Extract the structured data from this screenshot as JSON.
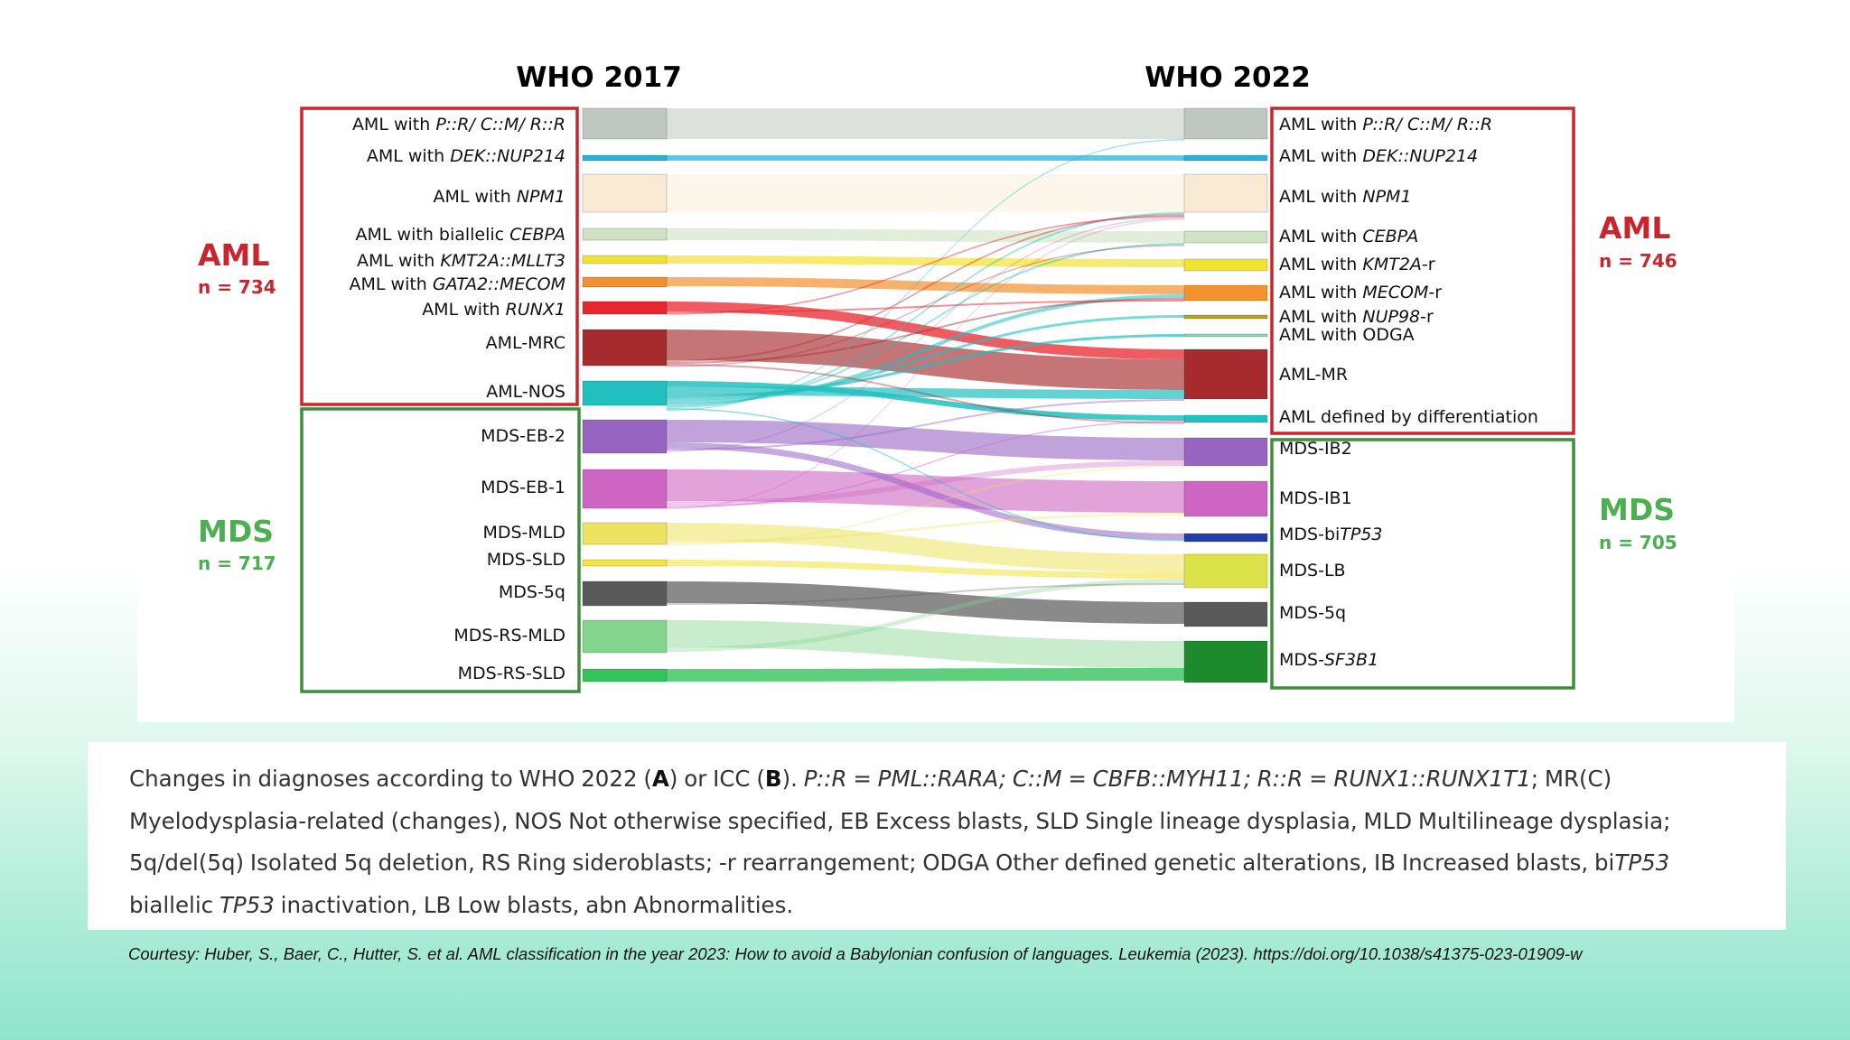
{
  "headers": {
    "left": "WHO 2017",
    "right": "WHO 2022"
  },
  "groups": {
    "aml_left": {
      "name": "AML",
      "count": "n = 734"
    },
    "mds_left": {
      "name": "MDS",
      "count": "n = 717"
    },
    "aml_right": {
      "name": "AML",
      "count": "n = 746"
    },
    "mds_right": {
      "name": "MDS",
      "count": "n = 705"
    }
  },
  "colors": {
    "aml_group": "#c8262e",
    "mds_group": "#3f8e3a"
  },
  "left_nodes": [
    {
      "label": "AML with ",
      "italic": "P::R/ C::M/ R::R",
      "suffix": "",
      "color": "#bfc8c0"
    },
    {
      "label": "AML with ",
      "italic": "DEK::NUP214",
      "suffix": "",
      "color": "#29b2d6"
    },
    {
      "label": "AML with ",
      "italic": "NPM1",
      "suffix": "",
      "color": "#f8ead3"
    },
    {
      "label": "AML with biallelic ",
      "italic": "CEBPA",
      "suffix": "",
      "color": "#cfe3c2"
    },
    {
      "label": "AML with ",
      "italic": "KMT2A::MLLT3",
      "suffix": "",
      "color": "#f2e330"
    },
    {
      "label": "AML with ",
      "italic": "GATA2::MECOM",
      "suffix": "",
      "color": "#f2922f"
    },
    {
      "label": "AML with ",
      "italic": "RUNX1",
      "suffix": "",
      "color": "#e8262e"
    },
    {
      "label": "AML-MRC",
      "italic": "",
      "suffix": "",
      "color": "#a72b2e"
    },
    {
      "label": "AML-NOS",
      "italic": "",
      "suffix": "",
      "color": "#21bfbf"
    },
    {
      "label": "MDS-EB-2",
      "italic": "",
      "suffix": "",
      "color": "#9764c2"
    },
    {
      "label": "MDS-EB-1",
      "italic": "",
      "suffix": "",
      "color": "#cf65c3"
    },
    {
      "label": "MDS-MLD",
      "italic": "",
      "suffix": "",
      "color": "#ece45e"
    },
    {
      "label": "MDS-SLD",
      "italic": "",
      "suffix": "",
      "color": "#f2e44a"
    },
    {
      "label": "MDS-5q",
      "italic": "",
      "suffix": "",
      "color": "#595959"
    },
    {
      "label": "MDS-RS-MLD",
      "italic": "",
      "suffix": "",
      "color": "#84d48e"
    },
    {
      "label": "MDS-RS-SLD",
      "italic": "",
      "suffix": "",
      "color": "#35c35c"
    }
  ],
  "right_nodes": [
    {
      "label": "AML with ",
      "italic": "P::R/ C::M/ R::R",
      "suffix": "",
      "color": "#bfc8c0"
    },
    {
      "label": "AML with ",
      "italic": "DEK::NUP214",
      "suffix": "",
      "color": "#29b2d6"
    },
    {
      "label": "AML with ",
      "italic": "NPM1",
      "suffix": "",
      "color": "#f8ead3"
    },
    {
      "label": "AML with ",
      "italic": "CEBPA",
      "suffix": "",
      "color": "#cfe3c2"
    },
    {
      "label": "AML with ",
      "italic": "KMT2A",
      "suffix": "-r",
      "color": "#f2e330"
    },
    {
      "label": "AML with ",
      "italic": "MECOM",
      "suffix": "-r",
      "color": "#f2922f"
    },
    {
      "label": "AML with ",
      "italic": "NUP98",
      "suffix": "-r",
      "color": "#b8a020"
    },
    {
      "label": "AML with ODGA",
      "italic": "",
      "suffix": "",
      "color": "#9ad0b8"
    },
    {
      "label": "AML-MR",
      "italic": "",
      "suffix": "",
      "color": "#a72b2e"
    },
    {
      "label": "AML defined by differentiation",
      "italic": "",
      "suffix": "",
      "color": "#21bfbf"
    },
    {
      "label": "MDS-IB2",
      "italic": "",
      "suffix": "",
      "color": "#9764c2"
    },
    {
      "label": "MDS-IB1",
      "italic": "",
      "suffix": "",
      "color": "#cf65c3"
    },
    {
      "label": "MDS-bi",
      "italic": "TP53",
      "suffix": "",
      "color": "#1f3fae"
    },
    {
      "label": "MDS-LB",
      "italic": "",
      "suffix": "",
      "color": "#dce34a"
    },
    {
      "label": "MDS-5q",
      "italic": "",
      "suffix": "",
      "color": "#595959"
    },
    {
      "label": "MDS-",
      "italic": "SF3B1",
      "suffix": "",
      "color": "#1d8a2e"
    }
  ],
  "caption": {
    "p1": "Changes in diagnoses according to WHO 2022 (",
    "a": "A",
    "p2": ") or ICC (",
    "b": "B",
    "p3": "). ",
    "i1": "P::R = PML::RARA; C::M = CBFB::MYH11; R::R = RUNX1::RUNX1T1",
    "p4": "; MR(C) Myelodysplasia-related (changes), NOS Not otherwise specified, EB Excess blasts, SLD Single lineage dysplasia, MLD Multilineage dysplasia; 5q/del(5q) Isolated 5q deletion, RS Ring sideroblasts; -r rearrangement; ODGA Other defined genetic alterations, IB Increased blasts, bi",
    "i2": "TP53",
    "p5": " biallelic ",
    "i3": "TP53",
    "p6": " inactivation, LB Low blasts, abn Abnormalities."
  },
  "courtesy": "Courtesy: Huber, S., Baer, C., Hutter, S. et al. AML classification in the year 2023: How to avoid a Babylonian confusion of languages. Leukemia (2023). https://doi.org/10.1038/s41375-023-01909-w"
}
